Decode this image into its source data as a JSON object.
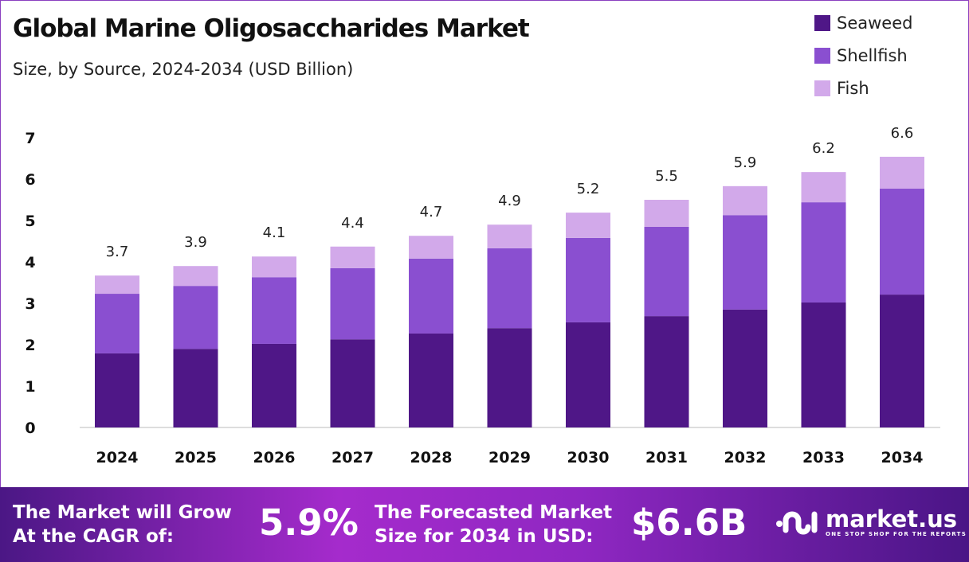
{
  "chart_data": {
    "type": "stacked-bar",
    "title": "Global Marine Oligosaccharides Market",
    "subtitle": "Size, by Source, 2024-2034 (USD Billion)",
    "categories": [
      "2024",
      "2025",
      "2026",
      "2027",
      "2028",
      "2029",
      "2030",
      "2031",
      "2032",
      "2033",
      "2034"
    ],
    "series": [
      {
        "name": "Seaweed",
        "color": "#4f1787",
        "values": [
          1.79,
          1.9,
          2.02,
          2.13,
          2.27,
          2.4,
          2.54,
          2.69,
          2.85,
          3.02,
          3.21
        ]
      },
      {
        "name": "Shellfish",
        "color": "#8a4fd0",
        "values": [
          1.44,
          1.52,
          1.61,
          1.72,
          1.81,
          1.93,
          2.04,
          2.16,
          2.28,
          2.42,
          2.56
        ]
      },
      {
        "name": "Fish",
        "color": "#d2a9ea",
        "values": [
          0.44,
          0.48,
          0.5,
          0.52,
          0.55,
          0.57,
          0.61,
          0.65,
          0.7,
          0.73,
          0.77
        ]
      }
    ],
    "totals": [
      "3.7",
      "3.9",
      "4.1",
      "4.4",
      "4.7",
      "4.9",
      "5.2",
      "5.5",
      "5.9",
      "6.2",
      "6.6"
    ],
    "yticks": [
      "0",
      "1",
      "2",
      "3",
      "4",
      "5",
      "6",
      "7"
    ],
    "ylim": [
      0,
      7
    ],
    "grid": false,
    "legend": "top-right"
  },
  "footer": {
    "cagr_text_1": "The Market will Grow",
    "cagr_text_2": "At the CAGR of:",
    "cagr_value": "5.9%",
    "forecast_text_1": "The Forecasted Market",
    "forecast_text_2": "Size for 2034 in USD:",
    "forecast_value": "$6.6B",
    "logo_name": "market.us",
    "logo_tagline": "ONE STOP SHOP FOR THE REPORTS"
  }
}
